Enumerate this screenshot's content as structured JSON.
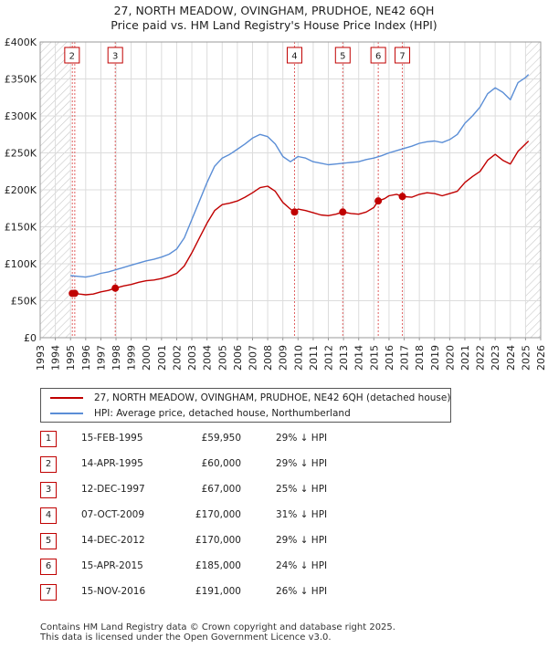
{
  "title_line1": "27, NORTH MEADOW, OVINGHAM, PRUDHOE, NE42 6QH",
  "title_line2": "Price paid vs. HM Land Registry's House Price Index (HPI)",
  "chart_data": {
    "type": "line",
    "xlim": [
      1993,
      2026
    ],
    "ylim": [
      0,
      400000
    ],
    "y_ticks": [
      {
        "value": 0,
        "label": "£0"
      },
      {
        "value": 50000,
        "label": "£50K"
      },
      {
        "value": 100000,
        "label": "£100K"
      },
      {
        "value": 150000,
        "label": "£150K"
      },
      {
        "value": 200000,
        "label": "£200K"
      },
      {
        "value": 250000,
        "label": "£250K"
      },
      {
        "value": 300000,
        "label": "£300K"
      },
      {
        "value": 350000,
        "label": "£350K"
      },
      {
        "value": 400000,
        "label": "£400K"
      }
    ],
    "x_ticks": [
      "1993",
      "1994",
      "1995",
      "1996",
      "1997",
      "1998",
      "1999",
      "2000",
      "2001",
      "2002",
      "2003",
      "2004",
      "2005",
      "2006",
      "2007",
      "2008",
      "2009",
      "2010",
      "2011",
      "2012",
      "2013",
      "2014",
      "2015",
      "2016",
      "2017",
      "2018",
      "2019",
      "2020",
      "2021",
      "2022",
      "2023",
      "2024",
      "2025",
      "2026"
    ],
    "hatch_before": 1995.0,
    "hatch_after": 2025.0,
    "series": [
      {
        "name": "27, NORTH MEADOW, OVINGHAM, PRUDHOE, NE42 6QH (detached house)",
        "color": "#c00000",
        "points": [
          [
            1995.12,
            59950
          ],
          [
            1995.28,
            60000
          ],
          [
            1995.6,
            59000
          ],
          [
            1996.0,
            58000
          ],
          [
            1996.5,
            59000
          ],
          [
            1997.0,
            62000
          ],
          [
            1997.5,
            64000
          ],
          [
            1997.95,
            67000
          ],
          [
            1998.5,
            70000
          ],
          [
            1999.0,
            72000
          ],
          [
            1999.5,
            75000
          ],
          [
            2000.0,
            77000
          ],
          [
            2000.5,
            78000
          ],
          [
            2001.0,
            80000
          ],
          [
            2001.5,
            83000
          ],
          [
            2002.0,
            87000
          ],
          [
            2002.5,
            97000
          ],
          [
            2003.0,
            115000
          ],
          [
            2003.5,
            135000
          ],
          [
            2004.0,
            155000
          ],
          [
            2004.5,
            172000
          ],
          [
            2005.0,
            180000
          ],
          [
            2005.5,
            182000
          ],
          [
            2006.0,
            185000
          ],
          [
            2006.5,
            190000
          ],
          [
            2007.0,
            196000
          ],
          [
            2007.5,
            203000
          ],
          [
            2008.0,
            205000
          ],
          [
            2008.5,
            198000
          ],
          [
            2009.0,
            183000
          ],
          [
            2009.5,
            174000
          ],
          [
            2009.77,
            170000
          ],
          [
            2010.0,
            174000
          ],
          [
            2010.5,
            172000
          ],
          [
            2011.0,
            169000
          ],
          [
            2011.5,
            166000
          ],
          [
            2012.0,
            165000
          ],
          [
            2012.5,
            167000
          ],
          [
            2012.95,
            170000
          ],
          [
            2013.5,
            168000
          ],
          [
            2014.0,
            167000
          ],
          [
            2014.5,
            170000
          ],
          [
            2015.0,
            176000
          ],
          [
            2015.29,
            185000
          ],
          [
            2015.7,
            188000
          ],
          [
            2016.0,
            192000
          ],
          [
            2016.5,
            194000
          ],
          [
            2016.88,
            191000
          ],
          [
            2017.5,
            190000
          ],
          [
            2018.0,
            194000
          ],
          [
            2018.5,
            196000
          ],
          [
            2019.0,
            195000
          ],
          [
            2019.5,
            192000
          ],
          [
            2020.0,
            195000
          ],
          [
            2020.5,
            198000
          ],
          [
            2021.0,
            210000
          ],
          [
            2021.5,
            218000
          ],
          [
            2022.0,
            225000
          ],
          [
            2022.5,
            240000
          ],
          [
            2023.0,
            248000
          ],
          [
            2023.5,
            240000
          ],
          [
            2024.0,
            235000
          ],
          [
            2024.5,
            252000
          ],
          [
            2025.0,
            262000
          ],
          [
            2025.2,
            266000
          ]
        ]
      },
      {
        "name": "HPI: Average price, detached house, Northumberland",
        "color": "#5b8ed6",
        "points": [
          [
            1995.0,
            84000
          ],
          [
            1995.5,
            83000
          ],
          [
            1996.0,
            82000
          ],
          [
            1996.5,
            84000
          ],
          [
            1997.0,
            87000
          ],
          [
            1997.5,
            89000
          ],
          [
            1998.0,
            92000
          ],
          [
            1998.5,
            95000
          ],
          [
            1999.0,
            98000
          ],
          [
            1999.5,
            101000
          ],
          [
            2000.0,
            104000
          ],
          [
            2000.5,
            106000
          ],
          [
            2001.0,
            109000
          ],
          [
            2001.5,
            113000
          ],
          [
            2002.0,
            120000
          ],
          [
            2002.5,
            135000
          ],
          [
            2003.0,
            160000
          ],
          [
            2003.5,
            185000
          ],
          [
            2004.0,
            210000
          ],
          [
            2004.5,
            232000
          ],
          [
            2005.0,
            243000
          ],
          [
            2005.5,
            248000
          ],
          [
            2006.0,
            255000
          ],
          [
            2006.5,
            262000
          ],
          [
            2007.0,
            270000
          ],
          [
            2007.5,
            275000
          ],
          [
            2008.0,
            272000
          ],
          [
            2008.5,
            262000
          ],
          [
            2009.0,
            245000
          ],
          [
            2009.5,
            238000
          ],
          [
            2010.0,
            245000
          ],
          [
            2010.5,
            243000
          ],
          [
            2011.0,
            238000
          ],
          [
            2011.5,
            236000
          ],
          [
            2012.0,
            234000
          ],
          [
            2012.5,
            235000
          ],
          [
            2013.0,
            236000
          ],
          [
            2013.5,
            237000
          ],
          [
            2014.0,
            238000
          ],
          [
            2014.5,
            241000
          ],
          [
            2015.0,
            243000
          ],
          [
            2015.5,
            246000
          ],
          [
            2016.0,
            250000
          ],
          [
            2016.5,
            253000
          ],
          [
            2017.0,
            256000
          ],
          [
            2017.5,
            259000
          ],
          [
            2018.0,
            263000
          ],
          [
            2018.5,
            265000
          ],
          [
            2019.0,
            266000
          ],
          [
            2019.5,
            264000
          ],
          [
            2020.0,
            268000
          ],
          [
            2020.5,
            275000
          ],
          [
            2021.0,
            290000
          ],
          [
            2021.5,
            300000
          ],
          [
            2022.0,
            312000
          ],
          [
            2022.5,
            330000
          ],
          [
            2023.0,
            338000
          ],
          [
            2023.5,
            332000
          ],
          [
            2024.0,
            322000
          ],
          [
            2024.5,
            345000
          ],
          [
            2025.0,
            352000
          ],
          [
            2025.2,
            356000
          ]
        ]
      }
    ],
    "sales": [
      {
        "num": "1",
        "x": 1995.12,
        "price": 59950,
        "date": "15-FEB-1995",
        "price_label": "£59,950",
        "hpi": "29% ↓ HPI"
      },
      {
        "num": "2",
        "x": 1995.28,
        "price": 60000,
        "date": "14-APR-1995",
        "price_label": "£60,000",
        "hpi": "29% ↓ HPI"
      },
      {
        "num": "3",
        "x": 1997.95,
        "price": 67000,
        "date": "12-DEC-1997",
        "price_label": "£67,000",
        "hpi": "25% ↓ HPI"
      },
      {
        "num": "4",
        "x": 2009.77,
        "price": 170000,
        "date": "07-OCT-2009",
        "price_label": "£170,000",
        "hpi": "31% ↓ HPI"
      },
      {
        "num": "5",
        "x": 2012.95,
        "price": 170000,
        "date": "14-DEC-2012",
        "price_label": "£170,000",
        "hpi": "29% ↓ HPI"
      },
      {
        "num": "6",
        "x": 2015.29,
        "price": 185000,
        "date": "15-APR-2015",
        "price_label": "£185,000",
        "hpi": "24% ↓ HPI"
      },
      {
        "num": "7",
        "x": 2016.88,
        "price": 191000,
        "date": "15-NOV-2016",
        "price_label": "£191,000",
        "hpi": "26% ↓ HPI"
      }
    ],
    "chart_labels": [
      "2",
      "3",
      "4",
      "5",
      "6",
      "7"
    ]
  },
  "legend": {
    "property": "27, NORTH MEADOW, OVINGHAM, PRUDHOE, NE42 6QH (detached house)",
    "hpi": "HPI: Average price, detached house, Northumberland"
  },
  "footer_line1": "Contains HM Land Registry data © Crown copyright and database right 2025.",
  "footer_line2": "This data is licensed under the Open Government Licence v3.0."
}
